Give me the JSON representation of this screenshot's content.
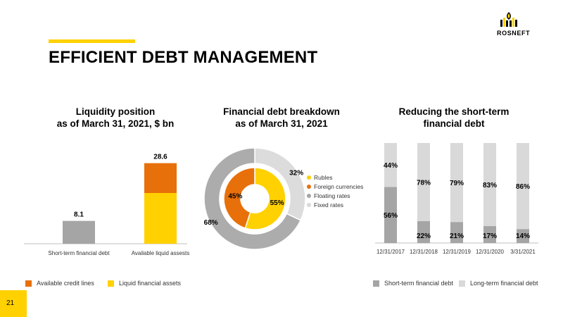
{
  "header": {
    "title": "EFFICIENT DEBT MANAGEMENT",
    "logo_text": "ROSNEFT"
  },
  "page_number": "21",
  "colors": {
    "accent": "#FFD100",
    "orange": "#E8700A",
    "yellow": "#FFD100",
    "dark_gray": "#A5A5A5",
    "light_gray": "#D9D9D9",
    "donut_outer_light": "#DCDCDC",
    "donut_outer_dark": "#ACACAC"
  },
  "chart_data": [
    {
      "type": "bar",
      "title_line1": "Liquidity position",
      "title_line2": "as of March 31, 2021, $ bn",
      "categories": [
        "Short-term financial debt",
        "Available liquid assests"
      ],
      "series": [
        {
          "name": "Liquid financial assets",
          "values": [
            8.1,
            18.0
          ]
        },
        {
          "name": "Available credit lines",
          "values": [
            0,
            10.6
          ]
        }
      ],
      "totals": [
        "8.1",
        "28.6"
      ],
      "ylim": [
        0,
        30
      ],
      "legend": [
        "Available credit lines",
        "Liquid financial assets"
      ]
    },
    {
      "type": "pie",
      "title_line1": "Financial debt breakdown",
      "title_line2": "as of March 31, 2021",
      "inner": {
        "labels": [
          "Rubles",
          "Foreign currencies"
        ],
        "values": [
          55,
          45
        ],
        "value_labels": [
          "55%",
          "45%"
        ]
      },
      "outer": {
        "labels": [
          "Fixed rates",
          "Floating rates"
        ],
        "values": [
          32,
          68
        ],
        "value_labels": [
          "32%",
          "68%"
        ]
      },
      "legend": [
        "Rubles",
        "Foreign currencies",
        "Floating rates",
        "Fixed rates"
      ]
    },
    {
      "type": "bar",
      "stacked": "100%",
      "title_line1": "Reducing the short-term",
      "title_line2": "financial debt",
      "categories": [
        "12/31/2017",
        "12/31/2018",
        "12/31/2019",
        "12/31/2020",
        "3/31/2021"
      ],
      "series": [
        {
          "name": "Short-term financial debt",
          "values": [
            56,
            22,
            21,
            17,
            14
          ],
          "labels": [
            "56%",
            "22%",
            "21%",
            "17%",
            "14%"
          ]
        },
        {
          "name": "Long-term financial debt",
          "values": [
            44,
            78,
            79,
            83,
            86
          ],
          "labels": [
            "44%",
            "78%",
            "79%",
            "83%",
            "86%"
          ]
        }
      ],
      "legend": [
        "Short-term financial debt",
        "Long-term financial debt"
      ]
    }
  ]
}
